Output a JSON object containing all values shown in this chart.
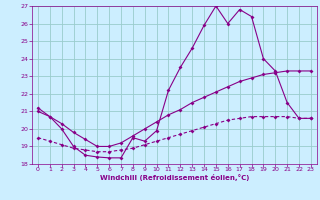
{
  "xlabel": "Windchill (Refroidissement éolien,°C)",
  "xlim": [
    -0.5,
    23.5
  ],
  "ylim": [
    18,
    27
  ],
  "xticks": [
    0,
    1,
    2,
    3,
    4,
    5,
    6,
    7,
    8,
    9,
    10,
    11,
    12,
    13,
    14,
    15,
    16,
    17,
    18,
    19,
    20,
    21,
    22,
    23
  ],
  "yticks": [
    18,
    19,
    20,
    21,
    22,
    23,
    24,
    25,
    26,
    27
  ],
  "bg_color": "#cceeff",
  "line_color": "#880088",
  "grid_color": "#99cccc",
  "line1_y": [
    21.2,
    20.7,
    20.0,
    19.0,
    18.5,
    18.4,
    18.35,
    18.35,
    19.5,
    19.3,
    19.9,
    22.2,
    23.5,
    24.6,
    25.9,
    27.0,
    26.0,
    26.8,
    26.4,
    24.0,
    23.3,
    21.5,
    20.6,
    20.6
  ],
  "line2_y": [
    21.0,
    20.7,
    20.3,
    19.8,
    19.4,
    19.0,
    19.0,
    19.2,
    19.6,
    20.0,
    20.4,
    20.8,
    21.1,
    21.5,
    21.8,
    22.1,
    22.4,
    22.7,
    22.9,
    23.1,
    23.2,
    23.3,
    23.3,
    23.3
  ],
  "line3_y": [
    19.5,
    19.3,
    19.1,
    18.9,
    18.8,
    18.7,
    18.7,
    18.8,
    18.9,
    19.1,
    19.3,
    19.5,
    19.7,
    19.9,
    20.1,
    20.3,
    20.5,
    20.6,
    20.7,
    20.7,
    20.7,
    20.7,
    20.6,
    20.6
  ]
}
